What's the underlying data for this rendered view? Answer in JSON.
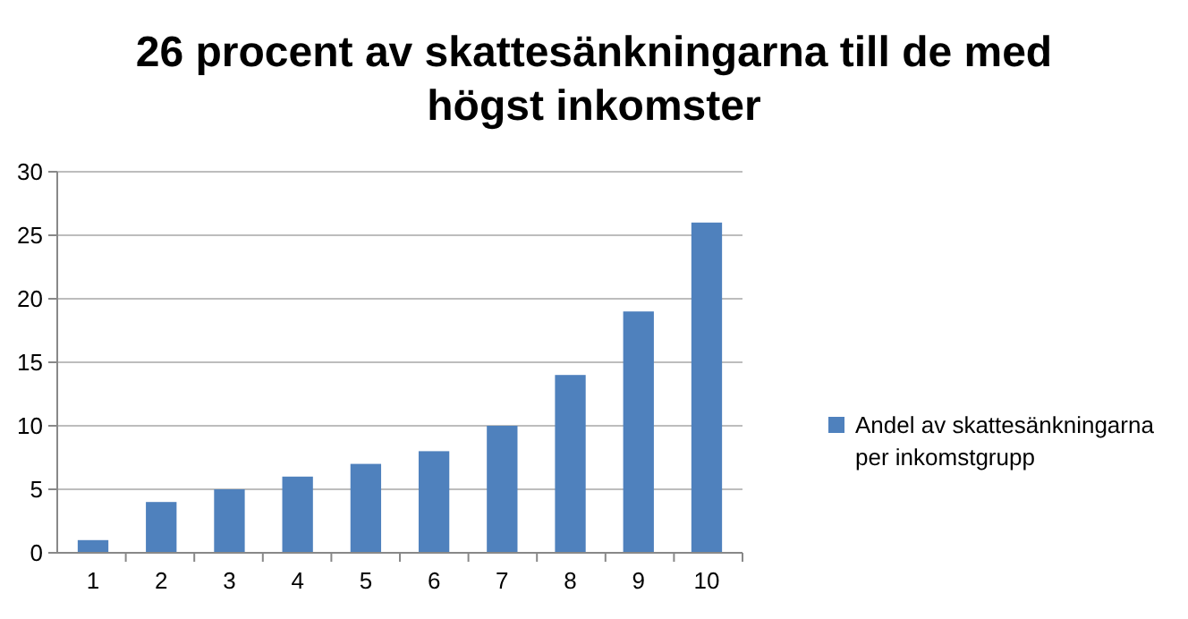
{
  "chart_data": {
    "type": "bar",
    "title": "26 procent av skattesänkningarna till de med högst inkomster",
    "categories": [
      "1",
      "2",
      "3",
      "4",
      "5",
      "6",
      "7",
      "8",
      "9",
      "10"
    ],
    "series": [
      {
        "name": "Andel av skattesänkningarna per inkomstgrupp",
        "color": "#4f81bd",
        "values": [
          1,
          4,
          5,
          6,
          7,
          8,
          10,
          14,
          19,
          26
        ]
      }
    ],
    "ylim": [
      0,
      30
    ],
    "yticks": [
      0,
      5,
      10,
      15,
      20,
      25,
      30
    ],
    "grid": "y",
    "legend": "right"
  }
}
